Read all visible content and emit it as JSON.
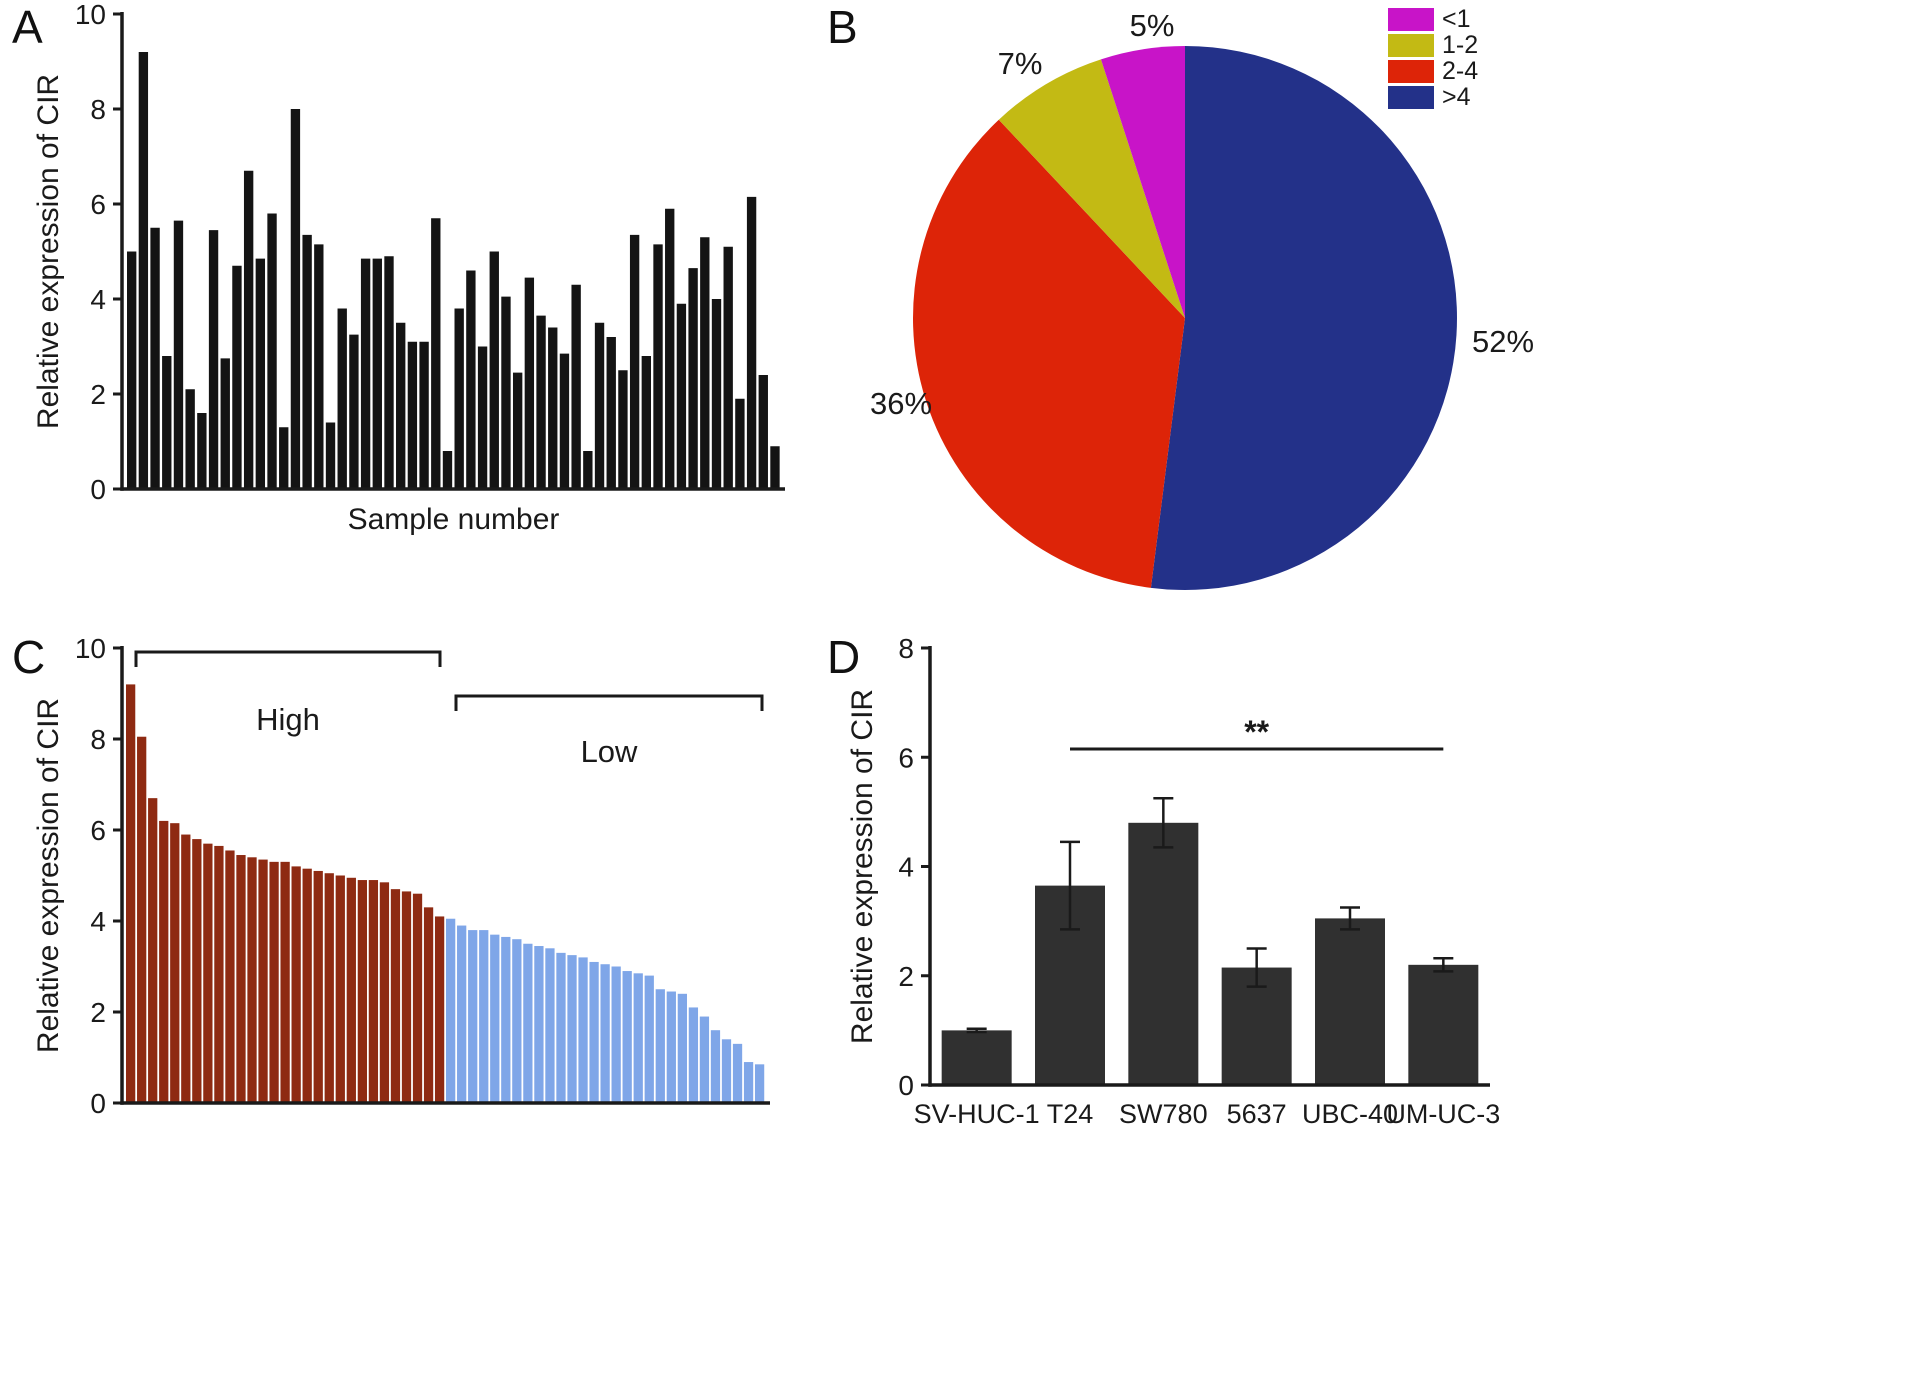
{
  "figure": {
    "panel_labels": {
      "a": "A",
      "b": "B",
      "c": "C",
      "d": "D"
    }
  },
  "chart_data": [
    {
      "id": "A",
      "type": "bar",
      "title": "",
      "xlabel": "Sample number",
      "ylabel": "Relative expression of CIR",
      "ylim": [
        0,
        10
      ],
      "yticks": [
        0,
        2,
        4,
        6,
        8,
        10
      ],
      "bar_color": "#141414",
      "values": [
        5.0,
        9.2,
        5.5,
        2.8,
        5.65,
        2.1,
        1.6,
        5.45,
        2.75,
        4.7,
        6.7,
        4.85,
        5.8,
        1.3,
        8.0,
        5.35,
        5.15,
        1.4,
        3.8,
        3.25,
        4.85,
        4.85,
        4.9,
        3.5,
        3.1,
        3.1,
        5.7,
        0.8,
        3.8,
        4.6,
        3.0,
        5.0,
        4.05,
        2.45,
        4.45,
        3.65,
        3.4,
        2.85,
        4.3,
        0.8,
        3.5,
        3.2,
        2.5,
        5.35,
        2.8,
        5.15,
        5.9,
        3.9,
        4.65,
        5.3,
        4.0,
        5.1,
        1.9,
        6.15,
        2.4,
        0.9
      ]
    },
    {
      "id": "B",
      "type": "pie",
      "title": "",
      "legend_position": "top-right",
      "slices": [
        {
          "label": "<1",
          "value": 5,
          "pct_label": "5%",
          "color": "#c814c8"
        },
        {
          "label": "1-2",
          "value": 7,
          "pct_label": "7%",
          "color": "#c3ba14"
        },
        {
          "label": "2-4",
          "value": 36,
          "pct_label": "36%",
          "color": "#dd2408"
        },
        {
          "label": ">4",
          "value": 52,
          "pct_label": "52%",
          "color": "#233189"
        }
      ]
    },
    {
      "id": "C",
      "type": "bar",
      "title": "",
      "xlabel": "",
      "ylabel": "Relative expression of CIR",
      "ylim": [
        0,
        10
      ],
      "yticks": [
        0,
        2,
        4,
        6,
        8,
        10
      ],
      "series": [
        {
          "name": "High",
          "color": "#8e2a12",
          "values": [
            9.2,
            8.05,
            6.7,
            6.2,
            6.15,
            5.9,
            5.8,
            5.7,
            5.65,
            5.55,
            5.45,
            5.4,
            5.35,
            5.3,
            5.3,
            5.2,
            5.15,
            5.1,
            5.05,
            5.0,
            4.95,
            4.9,
            4.9,
            4.85,
            4.7,
            4.65,
            4.6,
            4.3,
            4.1
          ]
        },
        {
          "name": "Low",
          "color": "#7fa6e8",
          "values": [
            4.05,
            3.9,
            3.8,
            3.8,
            3.7,
            3.65,
            3.6,
            3.5,
            3.45,
            3.4,
            3.3,
            3.25,
            3.2,
            3.1,
            3.05,
            3.0,
            2.9,
            2.85,
            2.8,
            2.5,
            2.45,
            2.4,
            2.1,
            1.9,
            1.6,
            1.4,
            1.3,
            0.9,
            0.85
          ]
        }
      ]
    },
    {
      "id": "D",
      "type": "bar",
      "title": "",
      "xlabel": "",
      "ylabel": "Relative expression of CIR",
      "ylim": [
        0,
        8
      ],
      "yticks": [
        0,
        2,
        4,
        6,
        8
      ],
      "bar_color": "#303030",
      "categories": [
        "SV-HUC-1",
        "T24",
        "SW780",
        "5637",
        "UBC-40",
        "UM-UC-3"
      ],
      "values": [
        1.0,
        3.65,
        4.8,
        2.15,
        3.05,
        2.2
      ],
      "errors": [
        0.03,
        0.8,
        0.45,
        0.35,
        0.2,
        0.12
      ],
      "significance": {
        "label": "**",
        "from": "T24",
        "to": "UM-UC-3",
        "y": 6.15
      }
    }
  ]
}
